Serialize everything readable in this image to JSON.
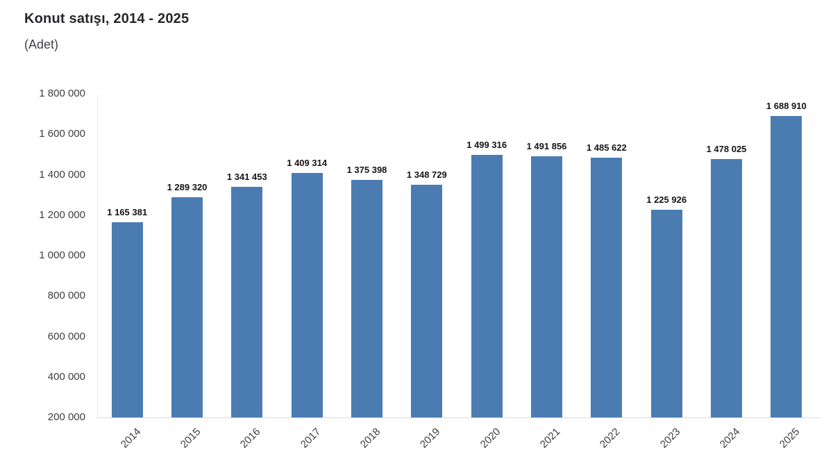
{
  "header": {
    "title": "Konut satışı, 2014 - 2025",
    "subtitle": "(Adet)"
  },
  "chart_data": {
    "type": "bar",
    "title": "Konut satışı, 2014 - 2025",
    "subtitle": "(Adet)",
    "unit": "Adet",
    "categories": [
      "2014",
      "2015",
      "2016",
      "2017",
      "2018",
      "2019",
      "2020",
      "2021",
      "2022",
      "2023",
      "2024",
      "2025"
    ],
    "values": [
      1165381,
      1289320,
      1341453,
      1409314,
      1375398,
      1348729,
      1499316,
      1491856,
      1485622,
      1225926,
      1478025,
      1688910
    ],
    "value_labels": [
      "1 165 381",
      "1 289 320",
      "1 341 453",
      "1 409 314",
      "1 375 398",
      "1 348 729",
      "1 499 316",
      "1 491 856",
      "1 485 622",
      "1 225 926",
      "1 478 025",
      "1 688 910"
    ],
    "xlabel": "",
    "ylabel": "",
    "ylim": [
      200000,
      1800000
    ],
    "ytick_values": [
      1800000,
      1600000,
      1400000,
      1200000,
      1000000,
      800000,
      600000,
      400000,
      200000
    ],
    "ytick_labels": [
      "1 800 000",
      "1 600 000",
      "1 400 000",
      "1 200 000",
      "1 000 000",
      "800 000",
      "600 000",
      "400 000",
      "200 000"
    ],
    "grid": false,
    "legend": false,
    "bar_color": "#4a7cb2",
    "label_rotation_deg": -45
  },
  "colors": {
    "background": "#ffffff",
    "bar": "#4a7cb2",
    "axis_line": "#e6e6e6",
    "tick_text": "#3d3d3d",
    "value_label_text": "#141414",
    "title_text": "#26262b"
  }
}
